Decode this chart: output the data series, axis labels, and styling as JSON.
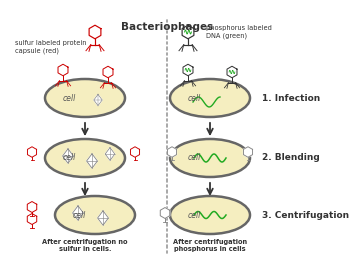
{
  "red_color": "#cc0000",
  "green_color": "#22aa22",
  "gray_color": "#888888",
  "dark_color": "#333333",
  "cell_fill": "#f5eec0",
  "cell_edge": "#666666",
  "white": "#ffffff",
  "title": "Bacteriophages",
  "label_sulfur": "sulfur labeled protein\ncapsule (red)",
  "label_phosphorus": "phosphorus labeled\nDNA (green)",
  "label1": "1. Infection",
  "label2": "2. Blending",
  "label3": "3. Centrifugation",
  "caption_left": "After centrifugation no\nsulfur in cells.",
  "caption_right": "After centrifugation\nphosphorus in cells"
}
